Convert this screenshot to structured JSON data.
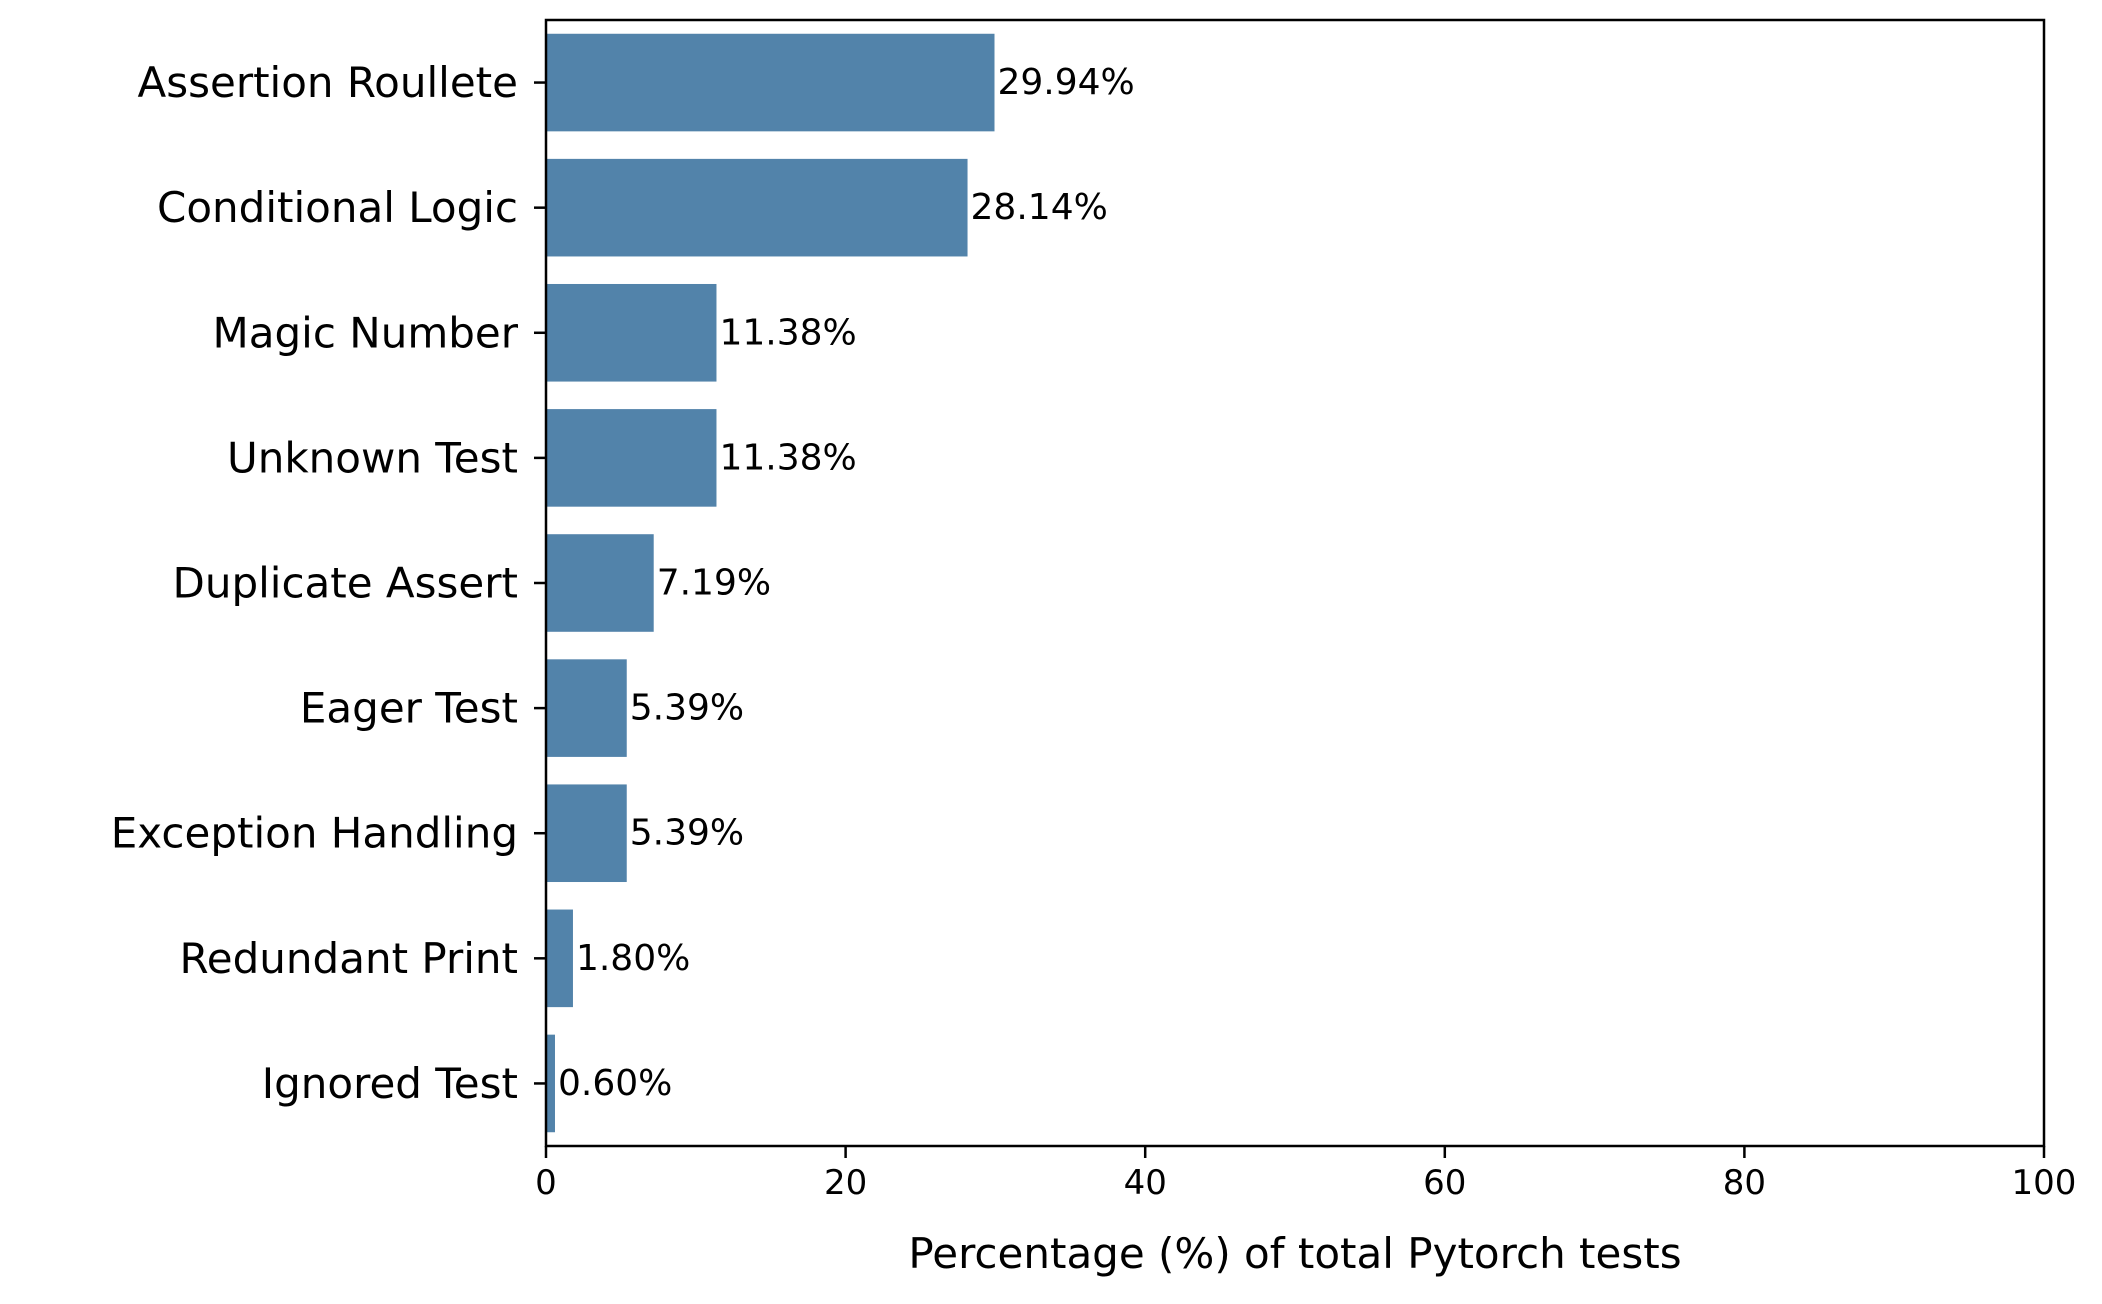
{
  "chart_data": {
    "type": "bar",
    "orientation": "horizontal",
    "categories": [
      "Assertion Roullete",
      "Conditional Logic",
      "Magic Number",
      "Unknown Test",
      "Duplicate Assert",
      "Eager Test",
      "Exception Handling",
      "Redundant Print",
      "Ignored Test"
    ],
    "values": [
      29.94,
      28.14,
      11.38,
      11.38,
      7.19,
      5.39,
      5.39,
      1.8,
      0.6
    ],
    "data_labels": [
      "29.94%",
      "28.14%",
      "11.38%",
      "11.38%",
      "7.19%",
      "5.39%",
      "5.39%",
      "1.80%",
      "0.60%"
    ],
    "title": "",
    "xlabel": "Percentage (%) of total Pytorch tests",
    "ylabel": "",
    "xlim": [
      0,
      100
    ],
    "xticks": [
      0,
      20,
      40,
      60,
      80,
      100
    ],
    "bar_color": "#5283aa",
    "grid": false,
    "legend": "none"
  }
}
